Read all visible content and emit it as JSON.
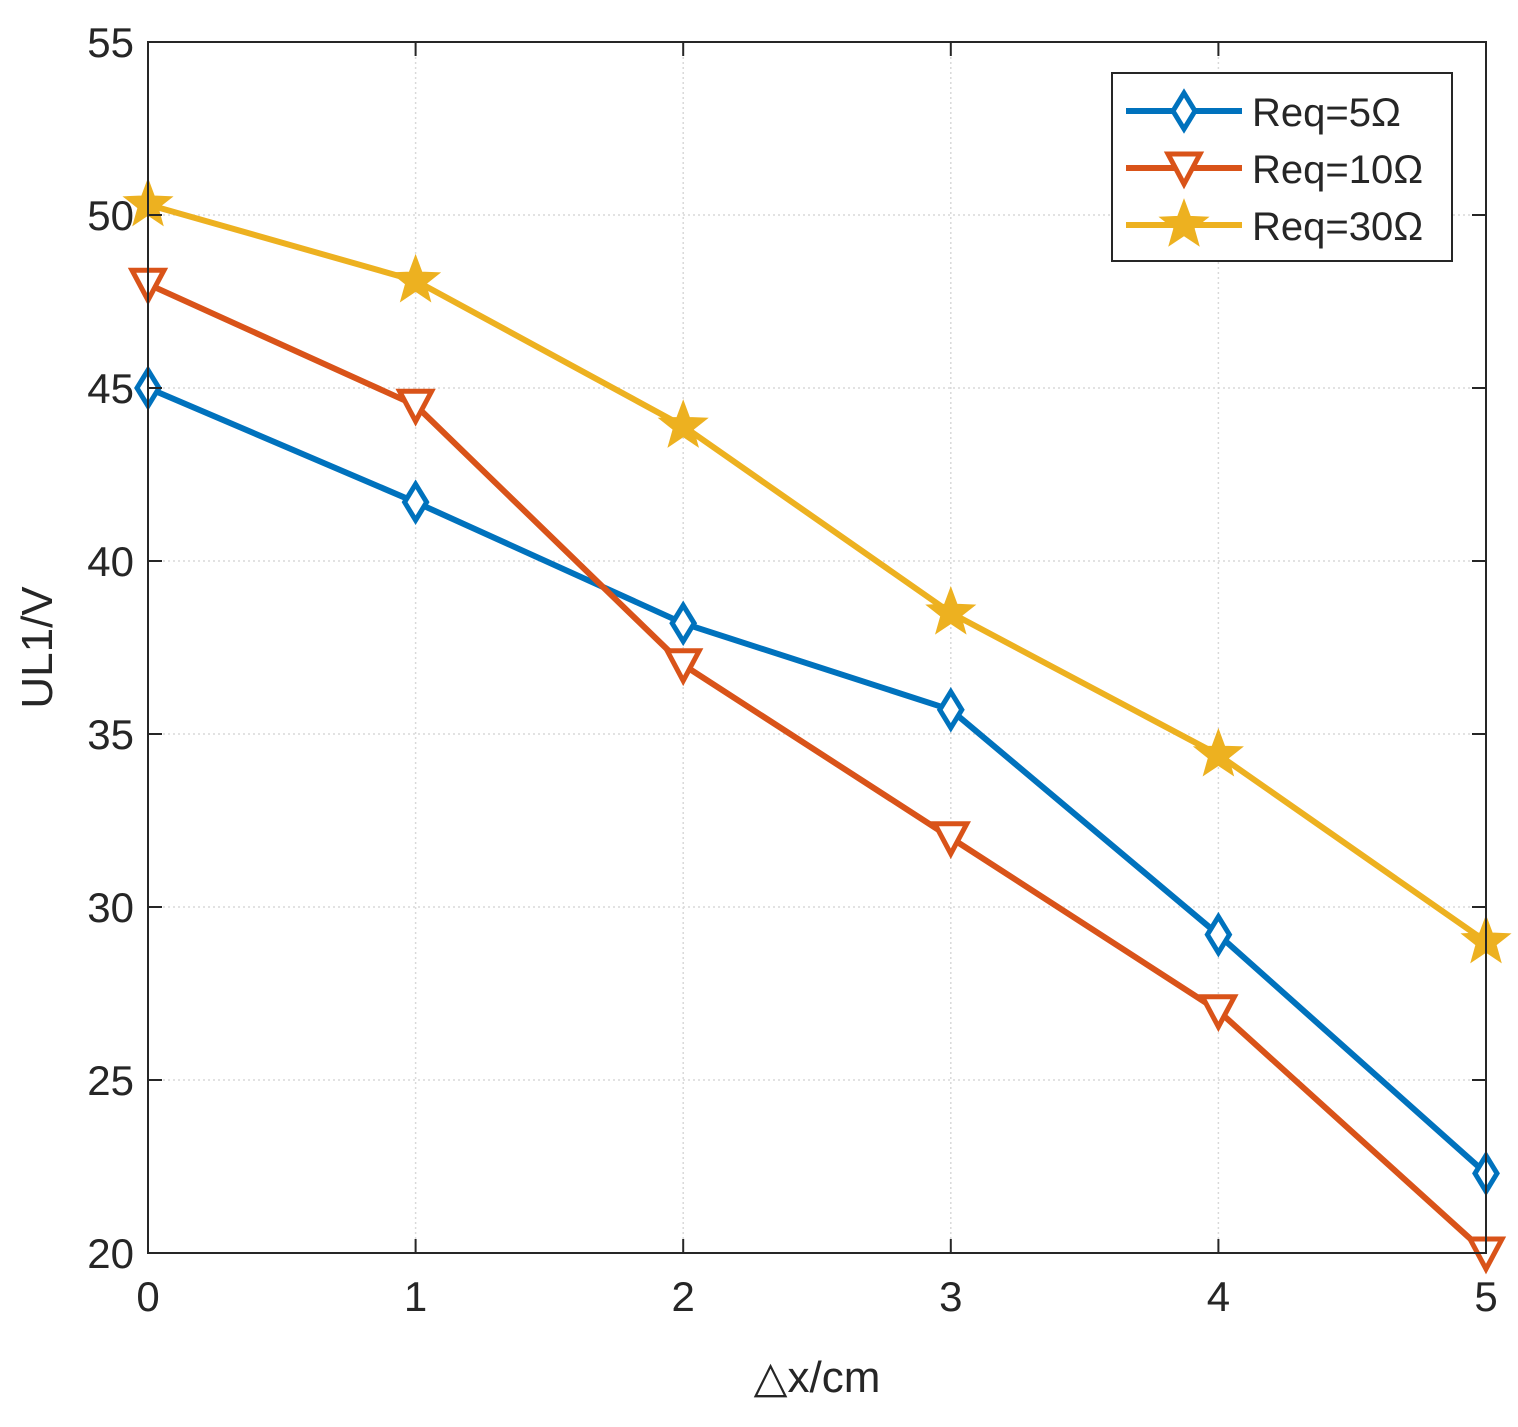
{
  "chart_data": {
    "type": "line",
    "title": "",
    "xlabel": "△x/cm",
    "ylabel": "UL1/V",
    "x": [
      0,
      1,
      2,
      3,
      4,
      5
    ],
    "xlim": [
      0,
      5
    ],
    "ylim": [
      20,
      55
    ],
    "xticks": [
      0,
      1,
      2,
      3,
      4,
      5
    ],
    "yticks": [
      20,
      25,
      30,
      35,
      40,
      45,
      50,
      55
    ],
    "grid": true,
    "legend_position": "top-right",
    "series": [
      {
        "name": "Req=5Ω",
        "color": "#0072BD",
        "marker": "diamond",
        "values": [
          45.0,
          41.7,
          38.2,
          35.7,
          29.2,
          22.3
        ]
      },
      {
        "name": "Req=10Ω",
        "color": "#D95319",
        "marker": "triangle-down",
        "values": [
          48.0,
          44.5,
          37.0,
          32.0,
          27.0,
          20.0
        ]
      },
      {
        "name": "Req=30Ω",
        "color": "#EDB120",
        "marker": "star",
        "values": [
          50.3,
          48.1,
          43.9,
          38.5,
          34.4,
          29.0
        ]
      }
    ]
  }
}
